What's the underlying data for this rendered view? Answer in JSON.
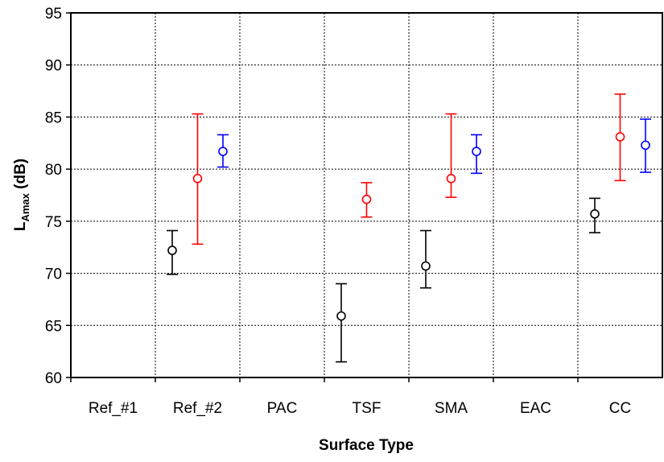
{
  "chart_data": {
    "type": "scatter",
    "xlabel": "Surface Type",
    "ylabel_main": "L",
    "ylabel_sub": "Amax",
    "ylabel_rest": " (dB)",
    "categories": [
      "Ref_#1",
      "Ref_#2",
      "PAC",
      "TSF",
      "SMA",
      "EAC",
      "CC"
    ],
    "ylim": [
      60,
      95
    ],
    "yticks": [
      "60",
      "65",
      "70",
      "75",
      "80",
      "85",
      "90",
      "95"
    ],
    "grid": true,
    "legend": "none",
    "series": [
      {
        "color": "#000000",
        "offset": -0.3,
        "points": [
          {
            "category": "Ref_#2",
            "y": 72.2,
            "low": 69.9,
            "high": 74.1
          },
          {
            "category": "TSF",
            "y": 65.9,
            "low": 61.5,
            "high": 69.0
          },
          {
            "category": "SMA",
            "y": 70.7,
            "low": 68.6,
            "high": 74.1
          },
          {
            "category": "CC",
            "y": 75.7,
            "low": 73.9,
            "high": 77.2
          }
        ]
      },
      {
        "color": "#ff0000",
        "offset": 0.0,
        "points": [
          {
            "category": "Ref_#2",
            "y": 79.1,
            "low": 72.8,
            "high": 85.3
          },
          {
            "category": "TSF",
            "y": 77.1,
            "low": 75.4,
            "high": 78.7
          },
          {
            "category": "SMA",
            "y": 79.1,
            "low": 77.3,
            "high": 85.3
          },
          {
            "category": "CC",
            "y": 83.1,
            "low": 78.9,
            "high": 87.2
          }
        ]
      },
      {
        "color": "#0000ff",
        "offset": 0.3,
        "points": [
          {
            "category": "Ref_#2",
            "y": 81.7,
            "low": 80.2,
            "high": 83.3
          },
          {
            "category": "SMA",
            "y": 81.7,
            "low": 79.6,
            "high": 83.3
          },
          {
            "category": "CC",
            "y": 82.3,
            "low": 79.7,
            "high": 84.8
          }
        ]
      }
    ]
  }
}
